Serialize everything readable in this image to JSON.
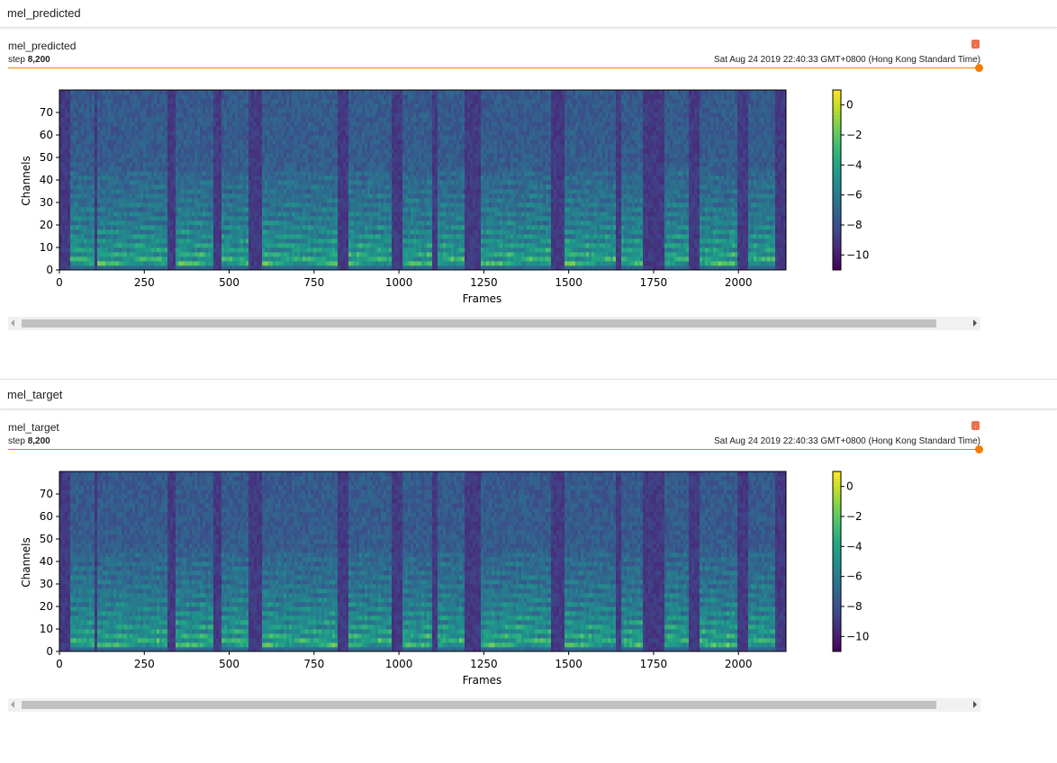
{
  "sections": [
    {
      "header": "mel_predicted",
      "card": {
        "title": "mel_predicted",
        "step_label": "step",
        "step_value": "8,200",
        "timestamp": "Sat Aug 24 2019 22:40:33 GMT+0800 (Hong Kong Standard Time)",
        "slider_value": 1.0
      },
      "chart_data": {
        "type": "heatmap",
        "colormap": "viridis",
        "xlabel": "Frames",
        "ylabel": "Channels",
        "xlim": [
          0,
          2140
        ],
        "ylim": [
          0,
          80
        ],
        "x_ticks": [
          0,
          250,
          500,
          750,
          1000,
          1250,
          1500,
          1750,
          2000
        ],
        "y_ticks": [
          0,
          10,
          20,
          30,
          40,
          50,
          60,
          70
        ],
        "colorbar_ticks": [
          0,
          -2,
          -4,
          -6,
          -8,
          -10
        ],
        "colorbar_range": [
          -11,
          1
        ],
        "silence_frames": [
          [
            0,
            30
          ],
          [
            100,
            115
          ],
          [
            320,
            345
          ],
          [
            455,
            480
          ],
          [
            560,
            595
          ],
          [
            820,
            850
          ],
          [
            980,
            1010
          ],
          [
            1100,
            1115
          ],
          [
            1190,
            1245
          ],
          [
            1450,
            1490
          ],
          [
            1635,
            1655
          ],
          [
            1720,
            1780
          ],
          [
            1855,
            1885
          ],
          [
            2000,
            2030
          ],
          [
            2110,
            2140
          ]
        ]
      },
      "scrollbar": {
        "thumb_fraction": 0.97
      }
    },
    {
      "header": "mel_target",
      "card": {
        "title": "mel_target",
        "step_label": "step",
        "step_value": "8,200",
        "timestamp": "Sat Aug 24 2019 22:40:33 GMT+0800 (Hong Kong Standard Time)",
        "slider_value": 1.0
      },
      "chart_data": {
        "type": "heatmap",
        "colormap": "viridis",
        "xlabel": "Frames",
        "ylabel": "Channels",
        "xlim": [
          0,
          2140
        ],
        "ylim": [
          0,
          80
        ],
        "x_ticks": [
          0,
          250,
          500,
          750,
          1000,
          1250,
          1500,
          1750,
          2000
        ],
        "y_ticks": [
          0,
          10,
          20,
          30,
          40,
          50,
          60,
          70
        ],
        "colorbar_ticks": [
          0,
          -2,
          -4,
          -6,
          -8,
          -10
        ],
        "colorbar_range": [
          -11,
          1
        ],
        "silence_frames": [
          [
            0,
            30
          ],
          [
            100,
            115
          ],
          [
            320,
            345
          ],
          [
            455,
            480
          ],
          [
            560,
            595
          ],
          [
            820,
            850
          ],
          [
            980,
            1010
          ],
          [
            1100,
            1115
          ],
          [
            1190,
            1245
          ],
          [
            1450,
            1490
          ],
          [
            1635,
            1655
          ],
          [
            1720,
            1780
          ],
          [
            1855,
            1885
          ],
          [
            2000,
            2030
          ],
          [
            2110,
            2140
          ]
        ]
      },
      "scrollbar": {
        "thumb_fraction": 0.97
      }
    }
  ]
}
